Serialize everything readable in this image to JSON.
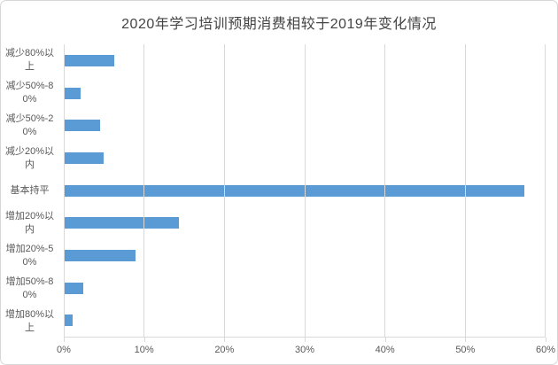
{
  "chart": {
    "title": "2020年学习培训预期消费相较于2019年变化情况",
    "title_color": "#444444",
    "bar_color": "#5b9bd5",
    "grid_color": "#d9d9d9",
    "label_color": "#595959"
  },
  "chart_data": {
    "type": "bar",
    "orientation": "horizontal",
    "title": "2020年学习培训预期消费相较于2019年变化情况",
    "categories": [
      "减少80%以上",
      "减少50%-80%",
      "减少50%-20%",
      "减少20%以内",
      "基本持平",
      "增加20%以内",
      "增加20%-50%",
      "增加50%-80%",
      "增加80%以上"
    ],
    "values": [
      6.2,
      2,
      4.4,
      4.9,
      57.3,
      14.3,
      8.8,
      2.3,
      1
    ],
    "unit": "%",
    "xlabel": "",
    "ylabel": "",
    "xlim": [
      0,
      60
    ],
    "x_tick_labels": [
      "0%",
      "10%",
      "20%",
      "30%",
      "40%",
      "50%",
      "60%"
    ],
    "grid": "vertical-only",
    "legend": "none",
    "series_color": "#5b9bd5"
  }
}
